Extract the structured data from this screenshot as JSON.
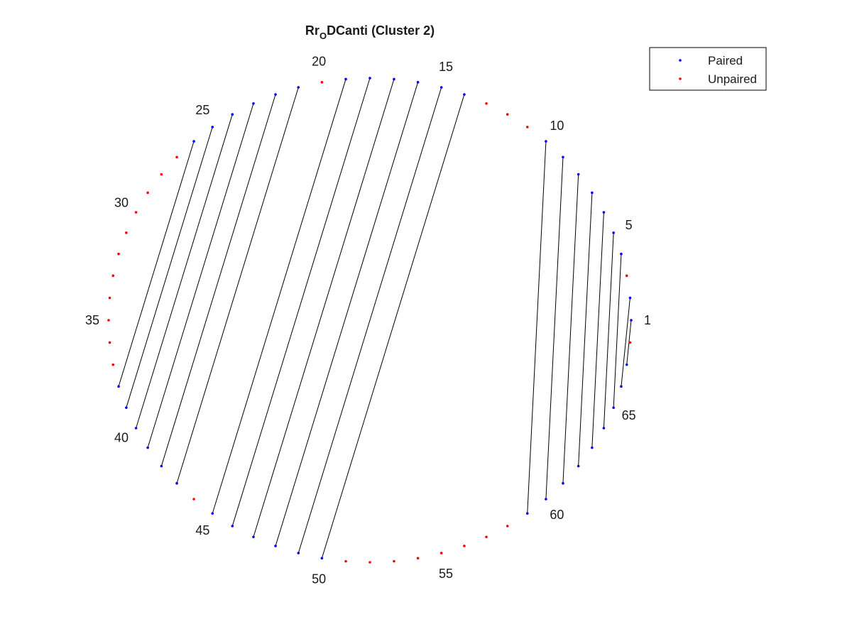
{
  "title": {
    "main": "Rr",
    "subscript": "O",
    "rest": "DCanti (Cluster 2)"
  },
  "legend": {
    "position": "top-right",
    "entries": [
      {
        "label": "Paired",
        "color": "#0000ff"
      },
      {
        "label": "Unpaired",
        "color": "#ff0000"
      }
    ]
  },
  "colors": {
    "paired": "#0000ff",
    "unpaired": "#ff0000",
    "line": "#000000"
  },
  "chart_data": {
    "type": "arc-diagram",
    "n_positions": 68,
    "tick_labels": [
      1,
      5,
      10,
      15,
      20,
      25,
      30,
      35,
      40,
      45,
      50,
      55,
      60,
      65
    ],
    "pairs": [
      [
        1,
        67
      ],
      [
        2,
        66
      ],
      [
        4,
        65
      ],
      [
        5,
        64
      ],
      [
        6,
        63
      ],
      [
        7,
        62
      ],
      [
        8,
        61
      ],
      [
        9,
        60
      ],
      [
        10,
        59
      ],
      [
        14,
        50
      ],
      [
        15,
        49
      ],
      [
        16,
        48
      ],
      [
        17,
        47
      ],
      [
        18,
        46
      ],
      [
        19,
        45
      ],
      [
        21,
        43
      ],
      [
        22,
        42
      ],
      [
        23,
        41
      ],
      [
        24,
        40
      ],
      [
        25,
        39
      ],
      [
        26,
        38
      ]
    ]
  }
}
